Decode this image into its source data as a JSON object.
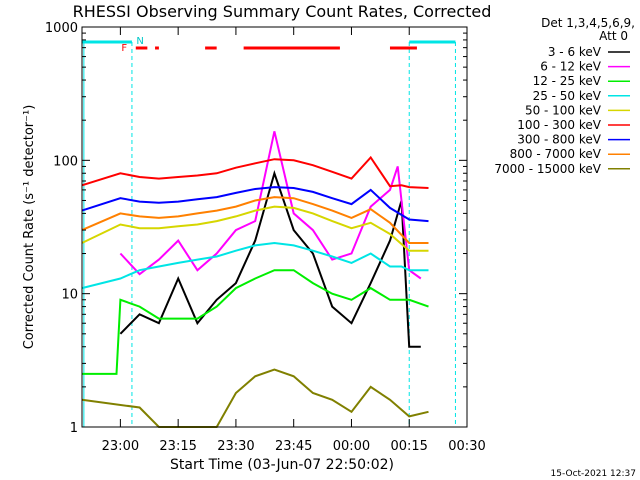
{
  "chart_data": {
    "type": "line",
    "title": "RHESSI Observing Summary Count Rates, Corrected",
    "xlabel": "Start Time (03-Jun-07 22:50:02)",
    "ylabel": "Corrected Count Rate (s⁻¹ detector⁻¹)",
    "y_scale": "log",
    "ylim": [
      1,
      1000
    ],
    "x_range": [
      "22:50:02",
      "00:30"
    ],
    "x_ticks": [
      "23:00",
      "23:15",
      "23:30",
      "23:45",
      "00:00",
      "00:15",
      "00:30"
    ],
    "y_ticks": [
      "1",
      "10",
      "100",
      "1000"
    ],
    "legend_title": "Det 1,3,4,5,6,9,",
    "legend_subtitle": "Att 0",
    "legend_position": "right-outside",
    "footer_date": "15-Oct-2021 12:37",
    "flag_labels": {
      "N": "N",
      "F": "F"
    },
    "night_intervals": [
      [
        "22:50",
        "23:03"
      ],
      [
        "00:15",
        "00:27"
      ]
    ],
    "flare_intervals": [
      [
        "23:04",
        "23:07"
      ],
      [
        "23:09",
        "23:10"
      ],
      [
        "23:22",
        "23:25"
      ],
      [
        "23:32",
        "23:57"
      ],
      [
        "00:10",
        "00:17"
      ]
    ],
    "series": [
      {
        "name": "3 - 6 keV",
        "color": "#000000",
        "points": [
          [
            "23:00",
            5
          ],
          [
            "23:05",
            7
          ],
          [
            "23:10",
            6
          ],
          [
            "23:15",
            13
          ],
          [
            "23:20",
            6
          ],
          [
            "23:25",
            9
          ],
          [
            "23:30",
            12
          ],
          [
            "23:35",
            25
          ],
          [
            "23:40",
            80
          ],
          [
            "23:45",
            30
          ],
          [
            "23:50",
            20
          ],
          [
            "23:55",
            8
          ],
          [
            "00:00",
            6
          ],
          [
            "00:05",
            12
          ],
          [
            "00:10",
            25
          ],
          [
            "00:13",
            50
          ],
          [
            "00:15",
            4
          ],
          [
            "00:18",
            4
          ]
        ]
      },
      {
        "name": "6 - 12 keV",
        "color": "#ff00ff",
        "points": [
          [
            "23:00",
            20
          ],
          [
            "23:05",
            14
          ],
          [
            "23:10",
            18
          ],
          [
            "23:15",
            25
          ],
          [
            "23:20",
            15
          ],
          [
            "23:25",
            20
          ],
          [
            "23:30",
            30
          ],
          [
            "23:35",
            35
          ],
          [
            "23:40",
            165
          ],
          [
            "23:45",
            40
          ],
          [
            "23:50",
            30
          ],
          [
            "23:55",
            18
          ],
          [
            "00:00",
            20
          ],
          [
            "00:05",
            45
          ],
          [
            "00:10",
            60
          ],
          [
            "00:12",
            90
          ],
          [
            "00:15",
            15
          ],
          [
            "00:18",
            13
          ]
        ]
      },
      {
        "name": "12 - 25 keV",
        "color": "#00ee00",
        "points": [
          [
            "22:50",
            2.5
          ],
          [
            "22:59",
            2.5
          ],
          [
            "23:00",
            9
          ],
          [
            "23:05",
            8
          ],
          [
            "23:10",
            6.5
          ],
          [
            "23:15",
            6.5
          ],
          [
            "23:20",
            6.5
          ],
          [
            "23:25",
            8
          ],
          [
            "23:30",
            11
          ],
          [
            "23:35",
            13
          ],
          [
            "23:40",
            15
          ],
          [
            "23:45",
            15
          ],
          [
            "23:50",
            12
          ],
          [
            "23:55",
            10
          ],
          [
            "00:00",
            9
          ],
          [
            "00:05",
            11
          ],
          [
            "00:10",
            9
          ],
          [
            "00:13",
            9
          ],
          [
            "00:15",
            9
          ],
          [
            "00:20",
            8
          ]
        ]
      },
      {
        "name": "25 - 50 keV",
        "color": "#00e5e5",
        "points": [
          [
            "22:50",
            11
          ],
          [
            "23:00",
            13
          ],
          [
            "23:05",
            15
          ],
          [
            "23:10",
            16
          ],
          [
            "23:15",
            17
          ],
          [
            "23:20",
            18
          ],
          [
            "23:25",
            19
          ],
          [
            "23:30",
            21
          ],
          [
            "23:35",
            23
          ],
          [
            "23:40",
            24
          ],
          [
            "23:45",
            23
          ],
          [
            "23:50",
            21
          ],
          [
            "23:55",
            19
          ],
          [
            "00:00",
            17
          ],
          [
            "00:05",
            20
          ],
          [
            "00:10",
            16
          ],
          [
            "00:13",
            16
          ],
          [
            "00:15",
            15
          ],
          [
            "00:20",
            15
          ]
        ]
      },
      {
        "name": "50 - 100 keV",
        "color": "#d6d600",
        "points": [
          [
            "22:50",
            24
          ],
          [
            "23:00",
            33
          ],
          [
            "23:05",
            31
          ],
          [
            "23:10",
            31
          ],
          [
            "23:15",
            32
          ],
          [
            "23:20",
            33
          ],
          [
            "23:25",
            35
          ],
          [
            "23:30",
            38
          ],
          [
            "23:35",
            42
          ],
          [
            "23:40",
            45
          ],
          [
            "23:45",
            44
          ],
          [
            "23:50",
            40
          ],
          [
            "23:55",
            35
          ],
          [
            "00:00",
            31
          ],
          [
            "00:05",
            34
          ],
          [
            "00:10",
            28
          ],
          [
            "00:15",
            21
          ],
          [
            "00:20",
            21
          ]
        ]
      },
      {
        "name": "100 - 300 keV",
        "color": "#ff0000",
        "points": [
          [
            "22:50",
            65
          ],
          [
            "23:00",
            80
          ],
          [
            "23:05",
            75
          ],
          [
            "23:10",
            73
          ],
          [
            "23:15",
            75
          ],
          [
            "23:20",
            77
          ],
          [
            "23:25",
            80
          ],
          [
            "23:30",
            88
          ],
          [
            "23:35",
            95
          ],
          [
            "23:40",
            102
          ],
          [
            "23:45",
            100
          ],
          [
            "23:50",
            92
          ],
          [
            "23:55",
            82
          ],
          [
            "00:00",
            73
          ],
          [
            "00:05",
            105
          ],
          [
            "00:10",
            64
          ],
          [
            "00:13",
            65
          ],
          [
            "00:15",
            63
          ],
          [
            "00:20",
            62
          ]
        ]
      },
      {
        "name": "300 - 800 keV",
        "color": "#0000ff",
        "points": [
          [
            "22:50",
            42
          ],
          [
            "23:00",
            52
          ],
          [
            "23:05",
            49
          ],
          [
            "23:10",
            48
          ],
          [
            "23:15",
            49
          ],
          [
            "23:20",
            51
          ],
          [
            "23:25",
            53
          ],
          [
            "23:30",
            57
          ],
          [
            "23:35",
            61
          ],
          [
            "23:40",
            63
          ],
          [
            "23:45",
            62
          ],
          [
            "23:50",
            58
          ],
          [
            "23:55",
            52
          ],
          [
            "00:00",
            47
          ],
          [
            "00:05",
            60
          ],
          [
            "00:10",
            44
          ],
          [
            "00:15",
            36
          ],
          [
            "00:20",
            35
          ]
        ]
      },
      {
        "name": "800 - 7000 keV",
        "color": "#ff8000",
        "points": [
          [
            "22:50",
            30
          ],
          [
            "23:00",
            40
          ],
          [
            "23:05",
            38
          ],
          [
            "23:10",
            37
          ],
          [
            "23:15",
            38
          ],
          [
            "23:20",
            40
          ],
          [
            "23:25",
            42
          ],
          [
            "23:30",
            45
          ],
          [
            "23:35",
            50
          ],
          [
            "23:40",
            53
          ],
          [
            "23:45",
            52
          ],
          [
            "23:50",
            47
          ],
          [
            "23:55",
            42
          ],
          [
            "00:00",
            37
          ],
          [
            "00:05",
            43
          ],
          [
            "00:10",
            34
          ],
          [
            "00:15",
            24
          ],
          [
            "00:20",
            24
          ]
        ]
      },
      {
        "name": "7000 - 15000 keV",
        "color": "#808000",
        "points": [
          [
            "22:50",
            1.6
          ],
          [
            "23:05",
            1.4
          ],
          [
            "23:10",
            1
          ],
          [
            "23:15",
            1
          ],
          [
            "23:20",
            1
          ],
          [
            "23:25",
            1
          ],
          [
            "23:30",
            1.8
          ],
          [
            "23:35",
            2.4
          ],
          [
            "23:40",
            2.7
          ],
          [
            "23:45",
            2.4
          ],
          [
            "23:50",
            1.8
          ],
          [
            "23:55",
            1.6
          ],
          [
            "00:00",
            1.3
          ],
          [
            "00:05",
            2
          ],
          [
            "00:10",
            1.6
          ],
          [
            "00:15",
            1.2
          ],
          [
            "00:20",
            1.3
          ]
        ]
      }
    ]
  }
}
